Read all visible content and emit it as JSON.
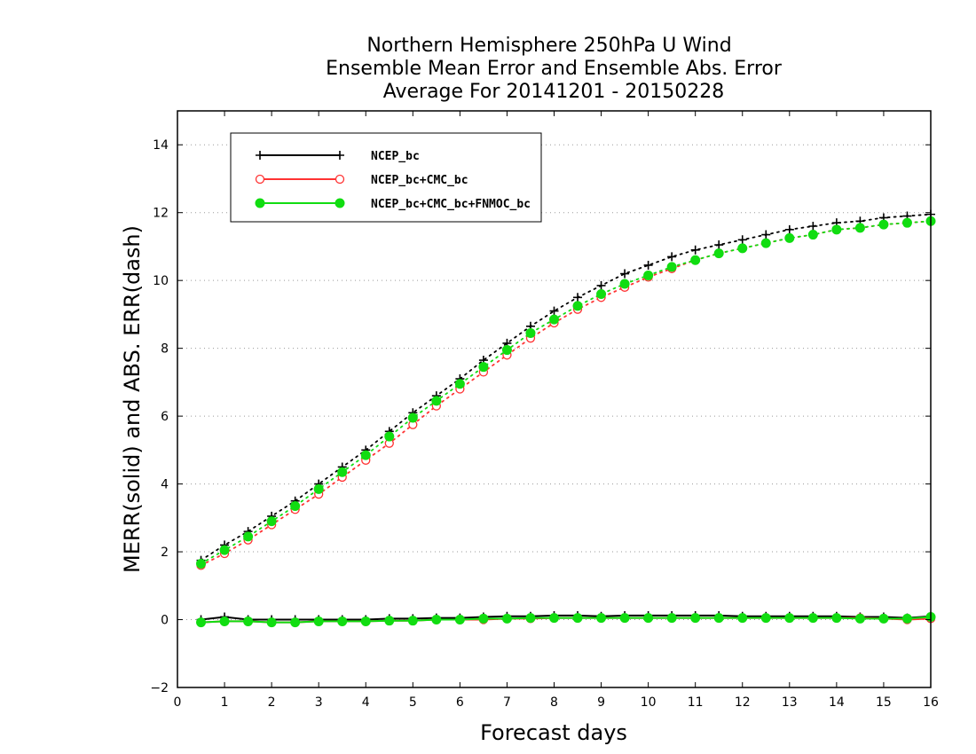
{
  "chart_data": {
    "type": "line",
    "title": [
      "Northern Hemisphere 250hPa U Wind",
      "Ensemble Mean Error and Ensemble Abs. Error",
      "Average For 20141201 - 20150228"
    ],
    "xlabel": "Forecast days",
    "ylabel": "MERR(solid) and ABS. ERR(dash)",
    "xlim": [
      0,
      16
    ],
    "ylim": [
      -2,
      15
    ],
    "xticks": [
      0,
      1,
      2,
      3,
      4,
      5,
      6,
      7,
      8,
      9,
      10,
      11,
      12,
      13,
      14,
      15,
      16
    ],
    "yticks": [
      -2,
      0,
      2,
      4,
      6,
      8,
      10,
      12,
      14
    ],
    "grid": "horizontal dotted",
    "legend_position": "top-left",
    "x": [
      0.5,
      1.0,
      1.5,
      2.0,
      2.5,
      3.0,
      3.5,
      4.0,
      4.5,
      5.0,
      5.5,
      6.0,
      6.5,
      7.0,
      7.5,
      8.0,
      8.5,
      9.0,
      9.5,
      10.0,
      10.5,
      11.0,
      11.5,
      12.0,
      12.5,
      13.0,
      13.5,
      14.0,
      14.5,
      15.0,
      15.5,
      16.0
    ],
    "series": [
      {
        "name": "NCEP_bc",
        "color": "#000000",
        "marker": "plus",
        "mean_error": [
          0.0,
          0.08,
          0.0,
          0.0,
          0.0,
          0.0,
          0.0,
          0.0,
          0.03,
          0.03,
          0.05,
          0.05,
          0.08,
          0.1,
          0.1,
          0.12,
          0.12,
          0.1,
          0.12,
          0.12,
          0.12,
          0.12,
          0.12,
          0.1,
          0.1,
          0.1,
          0.1,
          0.1,
          0.08,
          0.08,
          0.05,
          0.1
        ],
        "abs_error": [
          1.75,
          2.2,
          2.6,
          3.05,
          3.5,
          4.0,
          4.5,
          5.0,
          5.55,
          6.1,
          6.6,
          7.1,
          7.65,
          8.15,
          8.65,
          9.1,
          9.5,
          9.85,
          10.2,
          10.45,
          10.7,
          10.9,
          11.05,
          11.2,
          11.35,
          11.5,
          11.6,
          11.7,
          11.75,
          11.85,
          11.9,
          11.95
        ]
      },
      {
        "name": "NCEP_bc+CMC_bc",
        "color": "#ff3333",
        "marker": "open-circle",
        "mean_error": [
          -0.08,
          -0.05,
          -0.05,
          -0.08,
          -0.08,
          -0.05,
          -0.05,
          -0.05,
          -0.03,
          -0.03,
          0.0,
          0.0,
          0.0,
          0.03,
          0.03,
          0.05,
          0.05,
          0.05,
          0.05,
          0.05,
          0.05,
          0.05,
          0.05,
          0.05,
          0.05,
          0.05,
          0.05,
          0.05,
          0.05,
          0.03,
          0.0,
          0.03
        ],
        "abs_error": [
          1.6,
          1.95,
          2.35,
          2.8,
          3.25,
          3.7,
          4.2,
          4.7,
          5.2,
          5.75,
          6.3,
          6.8,
          7.3,
          7.8,
          8.3,
          8.75,
          9.15,
          9.5,
          9.8,
          10.1,
          10.35,
          10.6,
          10.8,
          10.95,
          11.1,
          11.25,
          11.35,
          11.5,
          11.55,
          11.65,
          11.7,
          11.75
        ]
      },
      {
        "name": "NCEP_bc+CMC_bc+FNMOC_bc",
        "color": "#11dd11",
        "marker": "filled-circle",
        "mean_error": [
          -0.08,
          -0.05,
          -0.05,
          -0.08,
          -0.08,
          -0.05,
          -0.05,
          -0.05,
          -0.03,
          -0.03,
          0.0,
          0.0,
          0.03,
          0.03,
          0.05,
          0.05,
          0.05,
          0.05,
          0.05,
          0.05,
          0.05,
          0.05,
          0.05,
          0.05,
          0.05,
          0.05,
          0.05,
          0.05,
          0.03,
          0.03,
          0.03,
          0.08
        ],
        "abs_error": [
          1.65,
          2.05,
          2.45,
          2.9,
          3.35,
          3.85,
          4.35,
          4.85,
          5.4,
          5.95,
          6.45,
          6.95,
          7.45,
          7.95,
          8.45,
          8.85,
          9.25,
          9.6,
          9.9,
          10.15,
          10.4,
          10.6,
          10.8,
          10.95,
          11.1,
          11.25,
          11.35,
          11.5,
          11.55,
          11.65,
          11.7,
          11.75
        ]
      }
    ]
  }
}
